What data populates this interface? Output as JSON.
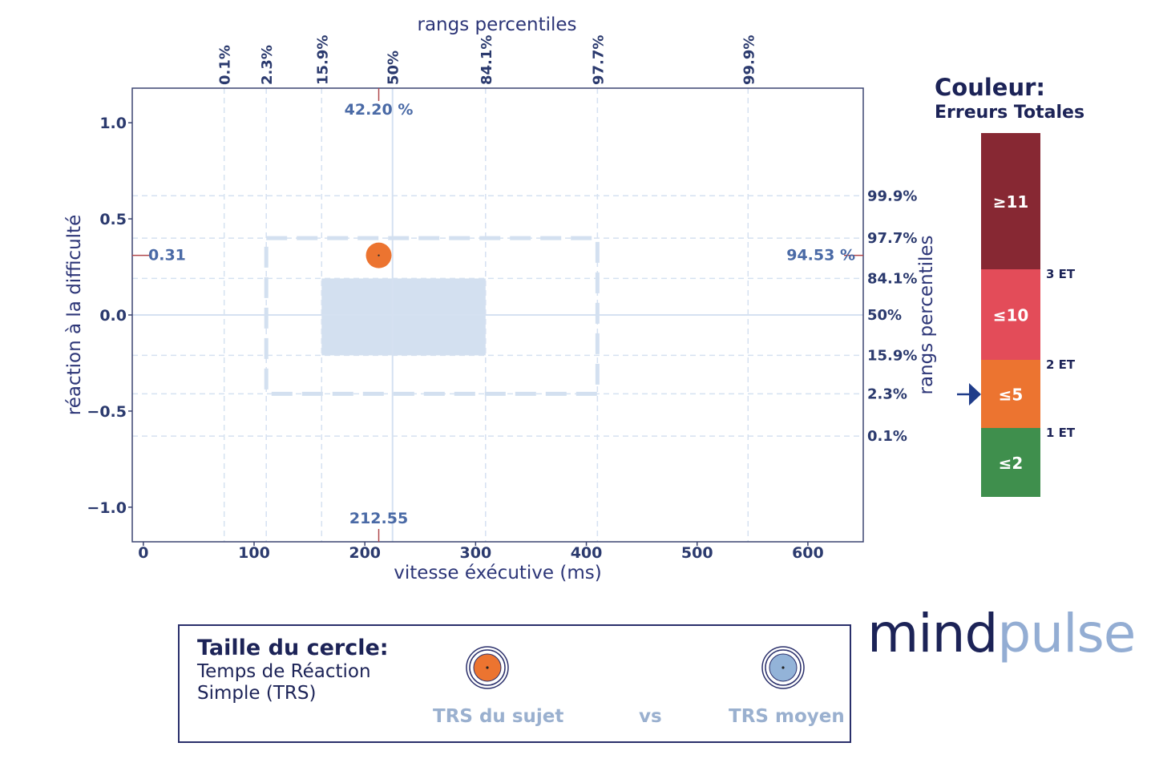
{
  "colors": {
    "axis": "#3b4470",
    "text": "#2b3a6e",
    "grid": "#d5e1f1",
    "band": "#d3e0f0",
    "subject": "#ec7430",
    "marker_line": "#b0484c",
    "mean_circle": "#93b3d8",
    "legend_border": "#2a2f6b"
  },
  "chart_data": {
    "type": "scatter",
    "title": "",
    "xlabel": "vitesse éxécutive (ms)",
    "ylabel": "réaction à la difficulté",
    "top_label": "rangs percentiles",
    "right_label": "rangs percentiles",
    "xlim": [
      -10,
      650
    ],
    "ylim": [
      -1.18,
      1.18
    ],
    "x_ticks": [
      "0",
      "100",
      "200",
      "300",
      "400",
      "500",
      "600"
    ],
    "y_ticks": [
      "1.0",
      "0.5",
      "0.0",
      "−0.5",
      "−1.0"
    ],
    "x_tick_values": [
      0,
      100,
      200,
      300,
      400,
      500,
      600
    ],
    "y_tick_values": [
      1.0,
      0.5,
      0.0,
      -0.5,
      -1.0
    ],
    "top_percentiles": [
      {
        "label": "0.1%",
        "x": 73
      },
      {
        "label": "2.3%",
        "x": 111
      },
      {
        "label": "15.9%",
        "x": 161
      },
      {
        "label": "50%",
        "x": 225
      },
      {
        "label": "84.1%",
        "x": 309
      },
      {
        "label": "97.7%",
        "x": 410
      },
      {
        "label": "99.9%",
        "x": 546
      }
    ],
    "right_percentiles": [
      {
        "label": "99.9%",
        "y": 0.62
      },
      {
        "label": "97.7%",
        "y": 0.4
      },
      {
        "label": "84.1%",
        "y": 0.19
      },
      {
        "label": "50%",
        "y": 0.0
      },
      {
        "label": "15.9%",
        "y": -0.21
      },
      {
        "label": "2.3%",
        "y": -0.41
      },
      {
        "label": "0.1%",
        "y": -0.63
      }
    ],
    "band_1sd": {
      "x": [
        161,
        309
      ],
      "y": [
        -0.21,
        0.19
      ]
    },
    "band_2sd": {
      "x": [
        111,
        410
      ],
      "y": [
        -0.41,
        0.4
      ]
    },
    "subject": {
      "x": 212.55,
      "y": 0.31
    },
    "annotations": {
      "x_value": "212.55",
      "x_percentile": "42.20 %",
      "y_value": "0.31",
      "y_percentile": "94.53 %"
    }
  },
  "colorbar": {
    "title": "Couleur:",
    "subtitle": "Erreurs Totales",
    "segments": [
      {
        "label": "≥11",
        "color": "#872833"
      },
      {
        "label": "≤10",
        "color": "#e34c59"
      },
      {
        "label": "≤5",
        "color": "#ec7430"
      },
      {
        "label": "≤2",
        "color": "#3f8f4d"
      }
    ],
    "thresholds": [
      "3 ET",
      "2 ET",
      "1 ET"
    ]
  },
  "legend": {
    "title": "Taille du cercle:",
    "subtitle": "Temps de Réaction Simple (TRS)",
    "subject_label": "TRS du sujet",
    "vs_label": "vs",
    "mean_label": "TRS moyen"
  },
  "logo": {
    "part1": "mind",
    "part2": "pulse"
  }
}
